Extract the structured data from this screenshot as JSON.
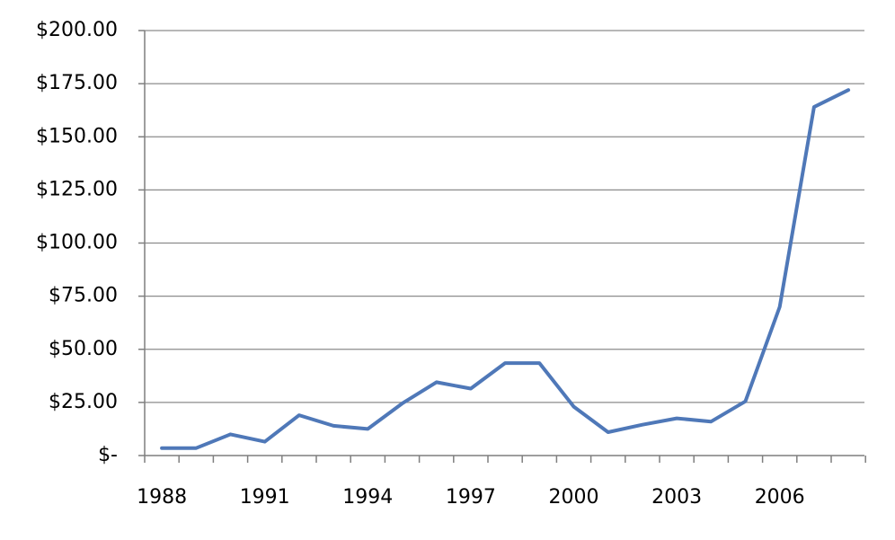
{
  "chart_data": {
    "type": "line",
    "title": "",
    "xlabel": "",
    "ylabel": "",
    "x": [
      1988,
      1989,
      1990,
      1991,
      1992,
      1993,
      1994,
      1995,
      1996,
      1997,
      1998,
      1999,
      2000,
      2001,
      2002,
      2003,
      2004,
      2005,
      2006,
      2007,
      2008
    ],
    "series": [
      {
        "values": [
          3.5,
          3.5,
          10,
          6.5,
          19,
          14,
          12.5,
          24.5,
          34.5,
          31.5,
          43.5,
          43.5,
          23,
          11,
          14.5,
          17.5,
          16,
          25.5,
          70,
          164,
          172
        ],
        "color": "#4f78b8"
      }
    ],
    "ylim": [
      0,
      200
    ],
    "yticks": [
      0,
      25,
      50,
      75,
      100,
      125,
      150,
      175,
      200
    ],
    "ytick_labels": [
      "$-",
      "$25.00",
      "$50.00",
      "$75.00",
      "$100.00",
      "$125.00",
      "$150.00",
      "$175.00",
      "$200.00"
    ],
    "xtick_labels": [
      "1988",
      "1991",
      "1994",
      "1997",
      "2000",
      "2003",
      "2006"
    ],
    "xtick_label_years": [
      1988,
      1991,
      1994,
      1997,
      2000,
      2003,
      2006
    ],
    "grid": true,
    "legend": "none"
  }
}
